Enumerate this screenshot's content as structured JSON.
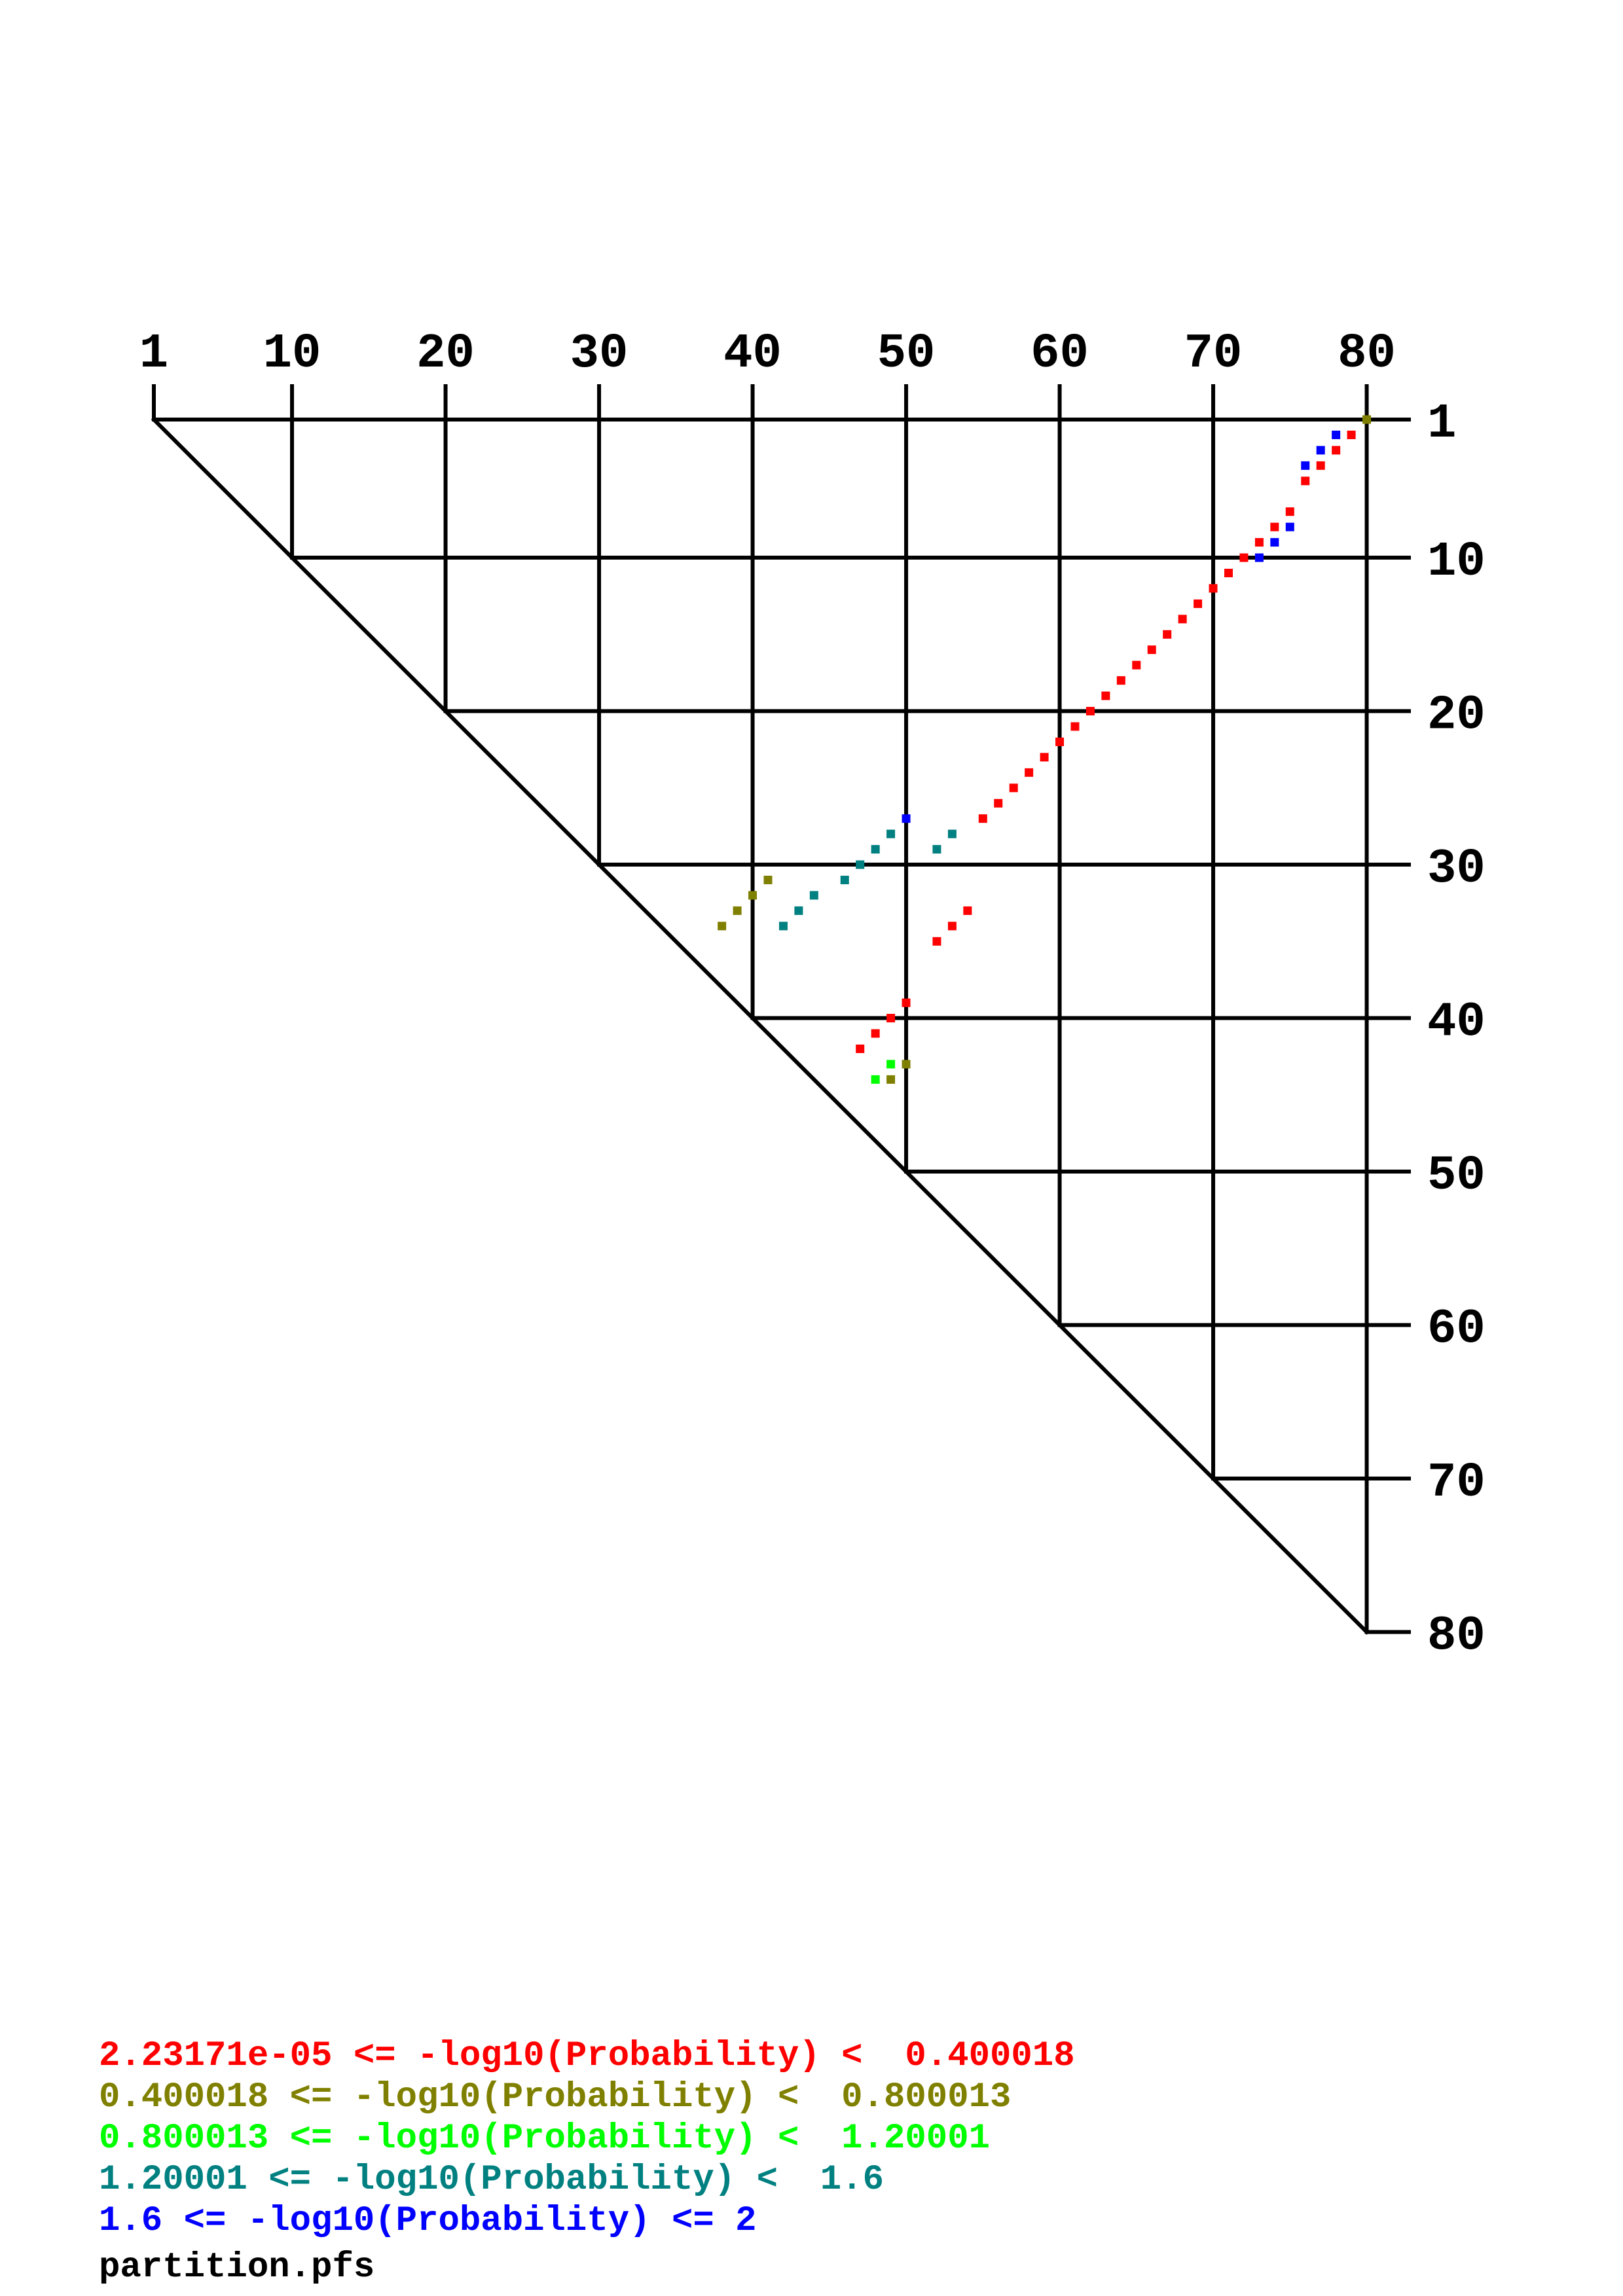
{
  "chart_data": {
    "type": "scatter",
    "subtype": "triangular base-pair probability dot plot",
    "xlim": [
      1,
      80
    ],
    "ylim": [
      1,
      80
    ],
    "y_inverted": true,
    "grid": true,
    "x_ticks": [
      "1",
      "10",
      "20",
      "30",
      "40",
      "50",
      "60",
      "70",
      "80"
    ],
    "y_ticks": [
      "1",
      "10",
      "20",
      "30",
      "40",
      "50",
      "60",
      "70",
      "80"
    ],
    "tick_values": [
      1,
      10,
      20,
      30,
      40,
      50,
      60,
      70,
      80
    ],
    "legend_placement": "bottom-left",
    "levels": [
      {
        "label": "2.23171e-05 <= -log10(Probability) <  0.400018",
        "color": "#ff0000"
      },
      {
        "label": "0.400018 <= -log10(Probability) <  0.800013",
        "color": "#808000"
      },
      {
        "label": "0.800013 <= -log10(Probability) <  1.20001",
        "color": "#00ff00"
      },
      {
        "label": "1.20001 <= -log10(Probability) <  1.6",
        "color": "#008080"
      },
      {
        "label": "1.6 <= -log10(Probability) <= 2",
        "color": "#0000ff"
      }
    ],
    "filename": "partition.pfs",
    "points": [
      {
        "x": 80,
        "y": 1,
        "level": 1
      },
      {
        "x": 79,
        "y": 2,
        "level": 0
      },
      {
        "x": 78,
        "y": 2,
        "level": 4
      },
      {
        "x": 78,
        "y": 3,
        "level": 0
      },
      {
        "x": 77,
        "y": 3,
        "level": 4
      },
      {
        "x": 77,
        "y": 4,
        "level": 0
      },
      {
        "x": 76,
        "y": 4,
        "level": 4
      },
      {
        "x": 76,
        "y": 5,
        "level": 0
      },
      {
        "x": 75,
        "y": 7,
        "level": 0
      },
      {
        "x": 74,
        "y": 8,
        "level": 0
      },
      {
        "x": 75,
        "y": 8,
        "level": 4
      },
      {
        "x": 73,
        "y": 9,
        "level": 0
      },
      {
        "x": 74,
        "y": 9,
        "level": 4
      },
      {
        "x": 72,
        "y": 10,
        "level": 0
      },
      {
        "x": 73,
        "y": 10,
        "level": 4
      },
      {
        "x": 71,
        "y": 11,
        "level": 0
      },
      {
        "x": 70,
        "y": 12,
        "level": 0
      },
      {
        "x": 69,
        "y": 13,
        "level": 0
      },
      {
        "x": 68,
        "y": 14,
        "level": 0
      },
      {
        "x": 67,
        "y": 15,
        "level": 0
      },
      {
        "x": 66,
        "y": 16,
        "level": 0
      },
      {
        "x": 65,
        "y": 17,
        "level": 0
      },
      {
        "x": 64,
        "y": 18,
        "level": 0
      },
      {
        "x": 63,
        "y": 19,
        "level": 0
      },
      {
        "x": 62,
        "y": 20,
        "level": 0
      },
      {
        "x": 61,
        "y": 21,
        "level": 0
      },
      {
        "x": 60,
        "y": 22,
        "level": 0
      },
      {
        "x": 59,
        "y": 23,
        "level": 0
      },
      {
        "x": 58,
        "y": 24,
        "level": 0
      },
      {
        "x": 57,
        "y": 25,
        "level": 0
      },
      {
        "x": 56,
        "y": 26,
        "level": 0
      },
      {
        "x": 55,
        "y": 27,
        "level": 0
      },
      {
        "x": 50,
        "y": 27,
        "level": 4
      },
      {
        "x": 49,
        "y": 28,
        "level": 3
      },
      {
        "x": 53,
        "y": 28,
        "level": 3
      },
      {
        "x": 48,
        "y": 29,
        "level": 3
      },
      {
        "x": 52,
        "y": 29,
        "level": 3
      },
      {
        "x": 47,
        "y": 30,
        "level": 3
      },
      {
        "x": 41,
        "y": 31,
        "level": 1
      },
      {
        "x": 46,
        "y": 31,
        "level": 3
      },
      {
        "x": 40,
        "y": 32,
        "level": 1
      },
      {
        "x": 44,
        "y": 32,
        "level": 3
      },
      {
        "x": 39,
        "y": 33,
        "level": 1
      },
      {
        "x": 43,
        "y": 33,
        "level": 3
      },
      {
        "x": 54,
        "y": 33,
        "level": 0
      },
      {
        "x": 38,
        "y": 34,
        "level": 1
      },
      {
        "x": 42,
        "y": 34,
        "level": 3
      },
      {
        "x": 53,
        "y": 34,
        "level": 0
      },
      {
        "x": 52,
        "y": 35,
        "level": 0
      },
      {
        "x": 50,
        "y": 39,
        "level": 0
      },
      {
        "x": 49,
        "y": 40,
        "level": 0
      },
      {
        "x": 48,
        "y": 41,
        "level": 0
      },
      {
        "x": 47,
        "y": 42,
        "level": 0
      },
      {
        "x": 49,
        "y": 43,
        "level": 2
      },
      {
        "x": 50,
        "y": 43,
        "level": 1
      },
      {
        "x": 48,
        "y": 44,
        "level": 2
      },
      {
        "x": 49,
        "y": 44,
        "level": 1
      }
    ]
  }
}
